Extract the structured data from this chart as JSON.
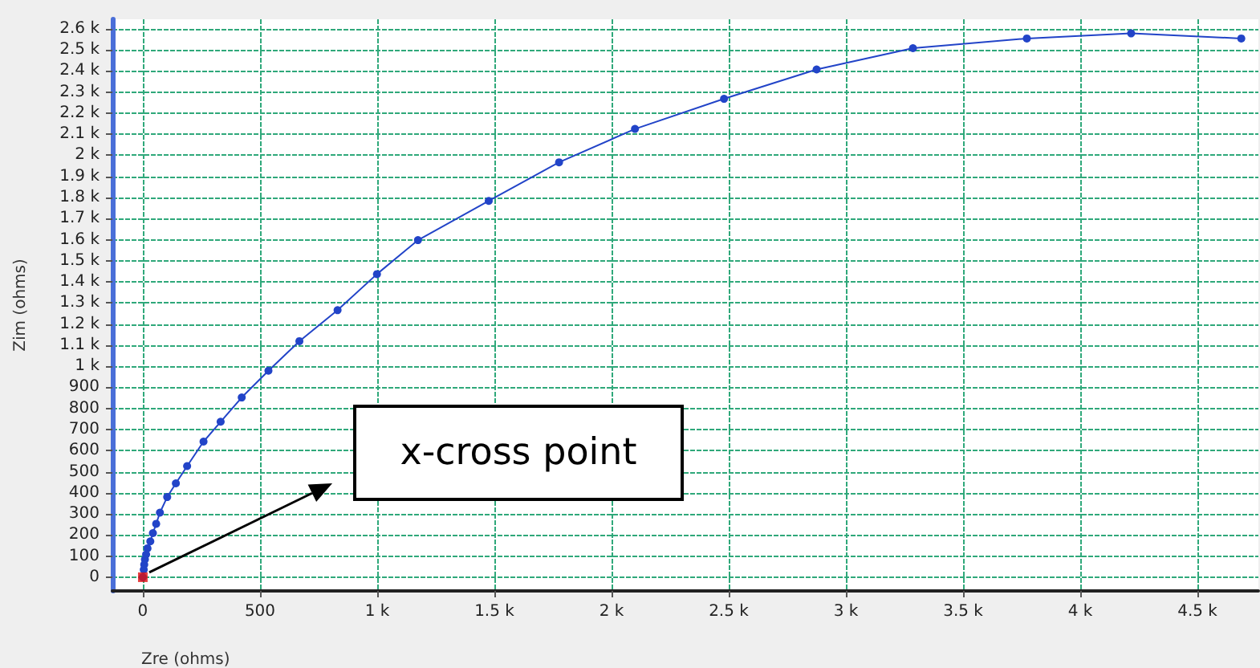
{
  "chart_data": {
    "type": "line",
    "xlabel": "Zre (ohms)",
    "ylabel": "Zim (ohms)",
    "xlim": [
      -130,
      4760
    ],
    "ylim": [
      -65,
      2645
    ],
    "xticks": [
      0,
      500,
      {
        "value": 1000,
        "label": "1 k"
      },
      {
        "value": 1500,
        "label": "1.5 k"
      },
      {
        "value": 2000,
        "label": "2 k"
      },
      {
        "value": 2500,
        "label": "2.5 k"
      },
      {
        "value": 3000,
        "label": "3 k"
      },
      {
        "value": 3500,
        "label": "3.5 k"
      },
      {
        "value": 4000,
        "label": "4 k"
      },
      {
        "value": 4500,
        "label": "4.5 k"
      }
    ],
    "yticks": [
      0,
      100,
      200,
      300,
      400,
      500,
      600,
      700,
      800,
      900,
      {
        "value": 1000,
        "label": "1 k"
      },
      {
        "value": 1100,
        "label": "1.1 k"
      },
      {
        "value": 1200,
        "label": "1.2 k"
      },
      {
        "value": 1300,
        "label": "1.3 k"
      },
      {
        "value": 1400,
        "label": "1.4 k"
      },
      {
        "value": 1500,
        "label": "1.5 k"
      },
      {
        "value": 1600,
        "label": "1.6 k"
      },
      {
        "value": 1700,
        "label": "1.7 k"
      },
      {
        "value": 1800,
        "label": "1.8 k"
      },
      {
        "value": 1900,
        "label": "1.9 k"
      },
      {
        "value": 2000,
        "label": "2 k"
      },
      {
        "value": 2100,
        "label": "2.1 k"
      },
      {
        "value": 2200,
        "label": "2.2 k"
      },
      {
        "value": 2300,
        "label": "2.3 k"
      },
      {
        "value": 2400,
        "label": "2.4 k"
      },
      {
        "value": 2500,
        "label": "2.5 k"
      },
      {
        "value": 2600,
        "label": "2.6 k"
      }
    ],
    "grid": true,
    "marker": "circle",
    "line_style": "solid",
    "series": [
      {
        "color": "#2244c8",
        "x": [
          0,
          4,
          6,
          9,
          14,
          20,
          32,
          43,
          57,
          73,
          104,
          141,
          189,
          259,
          332,
          422,
          536,
          668,
          831,
          999,
          1174,
          1476,
          1776,
          2100,
          2480,
          2875,
          3286,
          3772,
          4217,
          4687
        ],
        "values": [
          0,
          36,
          60,
          84,
          108,
          137,
          170,
          209,
          253,
          306,
          380,
          445,
          527,
          643,
          737,
          852,
          979,
          1119,
          1266,
          1437,
          1598,
          1784,
          1967,
          2125,
          2268,
          2407,
          2508,
          2554,
          2578,
          2554
        ]
      },
      {
        "type": "scatter",
        "color": "#e01010",
        "marker": "square",
        "x": [
          0
        ],
        "values": [
          0
        ]
      }
    ],
    "annotations": [
      "x-cross point"
    ]
  }
}
